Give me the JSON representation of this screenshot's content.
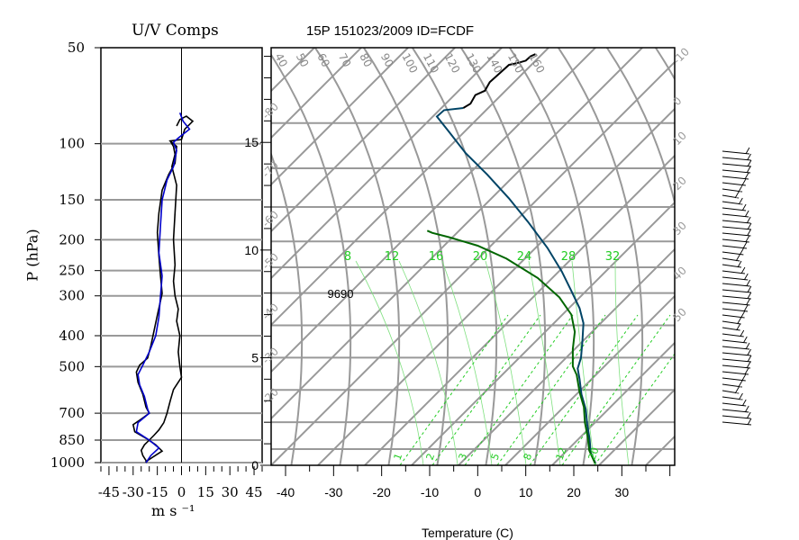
{
  "chart_data": [
    {
      "type": "line",
      "title": "U/V Comps",
      "xlabel": "m s ⁻¹",
      "ylabel": "P (hPa)",
      "x_ticks": [
        "-45",
        "-30",
        "-15",
        "0",
        "15",
        "30",
        "45"
      ],
      "xlim": [
        -50,
        50
      ],
      "y_ticks": [
        "50",
        "100",
        "150",
        "200",
        "250",
        "300",
        "400",
        "500",
        "700",
        "850",
        "1000"
      ],
      "ylim": [
        1000,
        50
      ],
      "y_scale": "log",
      "grid": true,
      "series": [
        {
          "color": "#000000",
          "points": [
            [
              -3,
              88
            ],
            [
              -1,
              84
            ],
            [
              3,
              82
            ],
            [
              7,
              85
            ],
            [
              2,
              90
            ],
            [
              0,
              97
            ],
            [
              -7,
              98
            ],
            [
              -3,
              102
            ],
            [
              -4,
              115
            ],
            [
              -8,
              125
            ],
            [
              -12,
              140
            ],
            [
              -14,
              165
            ],
            [
              -15,
              190
            ],
            [
              -14,
              225
            ],
            [
              -13,
              260
            ],
            [
              -12,
              295
            ],
            [
              -15,
              345
            ],
            [
              -17,
              385
            ],
            [
              -19,
              430
            ],
            [
              -21,
              470
            ],
            [
              -26,
              495
            ],
            [
              -28,
              520
            ],
            [
              -27,
              560
            ],
            [
              -24,
              610
            ],
            [
              -22,
              670
            ],
            [
              -20,
              700
            ],
            [
              -25,
              730
            ],
            [
              -30,
              760
            ],
            [
              -29,
              800
            ],
            [
              -21,
              845
            ],
            [
              -16,
              880
            ],
            [
              -12,
              920
            ],
            [
              -17,
              955
            ],
            [
              -21,
              985
            ],
            [
              -22,
              1000
            ]
          ]
        },
        {
          "color": "#000000",
          "points": [
            [
              -7,
              98
            ],
            [
              -5,
              102
            ],
            [
              -4,
              108
            ],
            [
              -6,
              118
            ],
            [
              -3,
              135
            ],
            [
              -4,
              165
            ],
            [
              -5,
              200
            ],
            [
              -4,
              240
            ],
            [
              -5,
              270
            ],
            [
              -4,
              300
            ],
            [
              -2,
              330
            ],
            [
              -3,
              360
            ],
            [
              -1,
              400
            ],
            [
              -2,
              450
            ],
            [
              -1,
              500
            ],
            [
              0,
              540
            ],
            [
              -5,
              590
            ],
            [
              -7,
              640
            ],
            [
              -9,
              700
            ],
            [
              -11,
              750
            ],
            [
              -14,
              790
            ],
            [
              -17,
              820
            ],
            [
              -20,
              850
            ],
            [
              -23,
              880
            ],
            [
              -25,
              915
            ],
            [
              -24,
              950
            ],
            [
              -22,
              985
            ],
            [
              -22,
              1000
            ]
          ]
        },
        {
          "color": "#0000cc",
          "points": [
            [
              -1,
              80
            ],
            [
              1,
              85
            ],
            [
              5,
              90
            ],
            [
              -2,
              96
            ],
            [
              -5,
              99
            ],
            [
              -3,
              105
            ],
            [
              -5,
              118
            ],
            [
              -9,
              130
            ],
            [
              -12,
              150
            ],
            [
              -13,
              180
            ],
            [
              -14,
              220
            ],
            [
              -12,
              260
            ],
            [
              -13,
              300
            ],
            [
              -14,
              350
            ],
            [
              -16,
              400
            ],
            [
              -20,
              450
            ],
            [
              -24,
              495
            ],
            [
              -27,
              530
            ],
            [
              -26,
              570
            ],
            [
              -23,
              620
            ],
            [
              -21,
              680
            ],
            [
              -20,
              700
            ],
            [
              -27,
              750
            ],
            [
              -28,
              800
            ],
            [
              -20,
              850
            ],
            [
              -14,
              900
            ],
            [
              -19,
              950
            ],
            [
              -22,
              1000
            ]
          ]
        }
      ]
    },
    {
      "type": "line",
      "title": "15P 151023/2009 ID=FCDF",
      "xlabel": "Temperature (C)",
      "x_ticks": [
        "-40",
        "-30",
        "-20",
        "-10",
        "0",
        "10",
        "20",
        "30"
      ],
      "xlim": [
        -43,
        41
      ],
      "y_ticks": [
        "0",
        "5",
        "10",
        "15"
      ],
      "ylim": [
        0,
        19.4
      ],
      "grid": true,
      "dry_adiabat_labels": [
        "40",
        "50",
        "60",
        "70",
        "80",
        "90",
        "100",
        "110",
        "120",
        "130",
        "140",
        "150",
        "160"
      ],
      "isotherm_labels": [
        "-80",
        "-70",
        "-60",
        "-50",
        "-40",
        "-30",
        "-20",
        "-10",
        "0",
        "10",
        "20",
        "30",
        "40",
        "50"
      ],
      "moist_adiabat_labels": [
        "8",
        "12",
        "16",
        "20",
        "24",
        "28",
        "32"
      ],
      "mixing_ratio_labels": [
        "1",
        "2",
        "3",
        "5",
        "8",
        "12",
        "20"
      ],
      "annotation": "9690",
      "series": [
        {
          "color": "#004466",
          "points": [
            [
              24.5,
              0.1
            ],
            [
              23.5,
              0.6
            ],
            [
              23.3,
              1.2
            ],
            [
              22.8,
              1.9
            ],
            [
              22.5,
              2.6
            ],
            [
              21.6,
              3.3
            ],
            [
              21.2,
              4.0
            ],
            [
              20.8,
              4.5
            ],
            [
              21.5,
              5.0
            ],
            [
              21.8,
              5.8
            ],
            [
              22.0,
              6.6
            ],
            [
              21.2,
              7.3
            ],
            [
              19.5,
              8.1
            ],
            [
              17.5,
              9.0
            ],
            [
              14.5,
              10.1
            ],
            [
              10.5,
              11.3
            ],
            [
              6.5,
              12.4
            ],
            [
              2.0,
              13.5
            ],
            [
              -2.5,
              14.5
            ],
            [
              -6.0,
              15.5
            ],
            [
              -8.5,
              16.2
            ],
            [
              -7.0,
              16.5
            ],
            [
              -3.0,
              16.6
            ]
          ]
        },
        {
          "color": "#006600",
          "points": [
            [
              24.4,
              0.1
            ],
            [
              23.2,
              0.7
            ],
            [
              22.9,
              1.3
            ],
            [
              22.3,
              2.0
            ],
            [
              22.1,
              2.7
            ],
            [
              21.2,
              3.4
            ],
            [
              20.6,
              4.2
            ],
            [
              19.8,
              4.6
            ],
            [
              19.8,
              5.4
            ],
            [
              20.2,
              6.2
            ],
            [
              19.5,
              7.0
            ],
            [
              17.0,
              7.8
            ],
            [
              12.5,
              8.7
            ],
            [
              6.0,
              9.6
            ],
            [
              0.0,
              10.2
            ],
            [
              -6.0,
              10.6
            ],
            [
              -9.5,
              10.8
            ],
            [
              -10.5,
              10.9
            ]
          ]
        },
        {
          "color": "#000000",
          "points": [
            [
              -3.0,
              16.6
            ],
            [
              -1.5,
              16.8
            ],
            [
              -0.5,
              17.2
            ],
            [
              1.5,
              17.4
            ],
            [
              2.5,
              17.8
            ],
            [
              4.5,
              18.2
            ],
            [
              6.5,
              18.6
            ],
            [
              8.5,
              18.7
            ],
            [
              10.0,
              18.8
            ],
            [
              11.0,
              19.0
            ],
            [
              12.0,
              19.1
            ]
          ]
        }
      ]
    }
  ]
}
